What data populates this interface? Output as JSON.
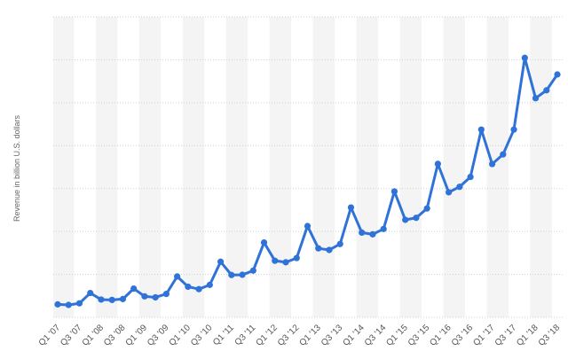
{
  "chart_data": {
    "type": "line",
    "y_label": "Revenue in billion U.S. dollars",
    "categories": [
      "Q1 '07",
      null,
      "Q3 '07",
      null,
      "Q1 '08",
      null,
      "Q3 '08",
      null,
      "Q1 '09",
      null,
      "Q3 '09",
      null,
      "Q1 '10",
      null,
      "Q3 '10",
      null,
      "Q1 '11",
      null,
      "Q3 '11",
      null,
      "Q1 '12",
      null,
      "Q3 '12",
      null,
      "Q1 '13",
      null,
      "Q3 '13",
      null,
      "Q1 '14",
      null,
      "Q3 '14",
      null,
      "Q1 '15",
      null,
      "Q3 '15",
      null,
      "Q1 '16",
      null,
      "Q3 '16",
      null,
      "Q1 '17",
      null,
      "Q3 '17",
      null,
      "Q1 '18",
      null,
      "Q3 '18"
    ],
    "values": [
      3.02,
      2.89,
      3.26,
      5.67,
      4.14,
      4.06,
      4.26,
      6.7,
      4.89,
      4.65,
      5.45,
      9.52,
      7.13,
      6.57,
      7.56,
      12.95,
      9.86,
      9.91,
      10.88,
      17.43,
      13.18,
      12.83,
      13.81,
      21.27,
      16.07,
      15.7,
      17.09,
      25.59,
      19.74,
      19.34,
      20.58,
      29.33,
      22.72,
      23.18,
      25.36,
      35.75,
      29.13,
      30.4,
      32.71,
      43.74,
      35.71,
      37.96,
      43.74,
      60.45,
      51.04,
      52.89,
      56.58
    ],
    "color": "#2f72d8",
    "ylim": [
      0,
      70
    ],
    "yticks": [
      0,
      10,
      20,
      30,
      40,
      50,
      60,
      70
    ],
    "grid": true
  }
}
